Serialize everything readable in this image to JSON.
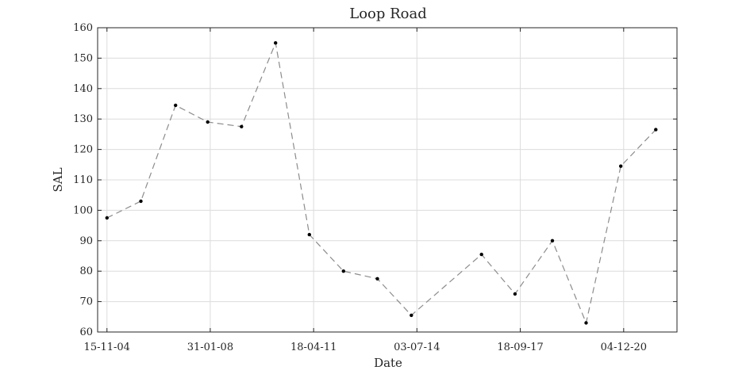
{
  "chart_data": {
    "type": "line",
    "title": "Loop Road",
    "xlabel": "Date",
    "ylabel": "SAL",
    "grid": true,
    "line_style": "dashed",
    "x_tick_labels": [
      "15-11-04",
      "31-01-08",
      "18-04-11",
      "03-07-14",
      "18-09-17",
      "04-12-20"
    ],
    "y_ticks": [
      60,
      70,
      80,
      90,
      100,
      110,
      120,
      130,
      140,
      150,
      160
    ],
    "ylim": [
      60,
      160
    ],
    "xlim": [
      "2004-08-01",
      "2022-08-01"
    ],
    "colors": {
      "line": "#8c8c8c",
      "marker": "#000000",
      "grid": "#dcdcdc",
      "axis": "#262626"
    },
    "series": [
      {
        "x": [
          "2004-11-15",
          "2005-12-05",
          "2007-01-02",
          "2008-01-02",
          "2009-01-20",
          "2010-02-10",
          "2011-03-01",
          "2012-03-22",
          "2013-04-10",
          "2014-05-01",
          "2016-07-05",
          "2017-07-20",
          "2018-09-17",
          "2019-10-05",
          "2020-11-01",
          "2021-12-04"
        ],
        "values": [
          97.5,
          103,
          134.5,
          129,
          127.5,
          155,
          92,
          80,
          77.5,
          65.5,
          85.5,
          72.5,
          90,
          63,
          114.5,
          126.5
        ]
      }
    ]
  }
}
